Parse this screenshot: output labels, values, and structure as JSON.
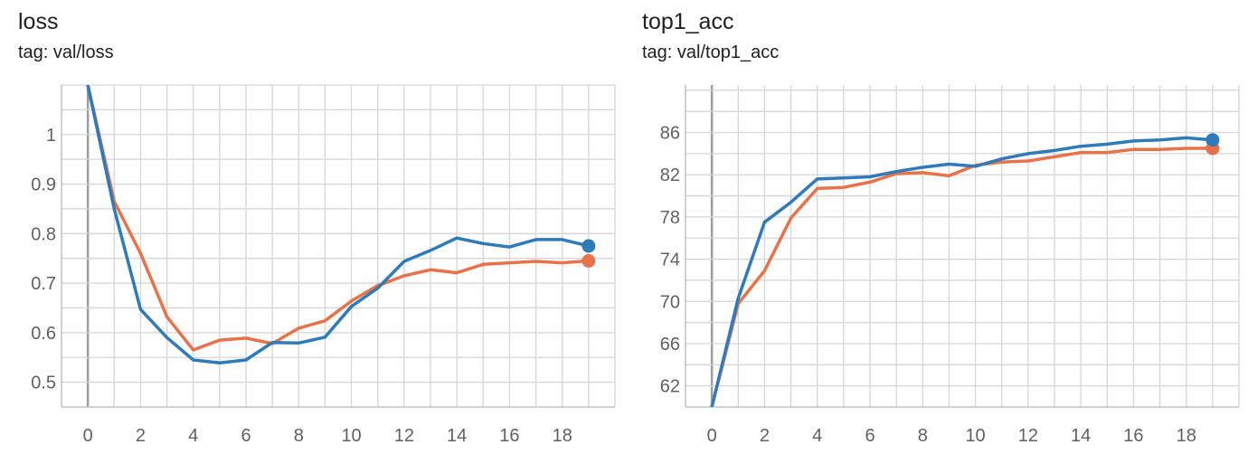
{
  "chart_data": [
    {
      "type": "line",
      "title": "loss",
      "subtitle": "tag: val/loss",
      "xlim": [
        -1,
        20
      ],
      "ylim": [
        0.45,
        1.1
      ],
      "xticks": [
        0,
        2,
        4,
        6,
        8,
        10,
        12,
        14,
        16,
        18
      ],
      "yticks": [
        0.5,
        0.6,
        0.7,
        0.8,
        0.9,
        1
      ],
      "ytick_labels": [
        "0.5",
        "0.6",
        "0.7",
        "0.8",
        "0.9",
        "1"
      ],
      "grid": true,
      "series": [
        {
          "color": "#e8734a",
          "x": [
            0,
            1,
            2,
            3,
            4,
            5,
            6,
            7,
            8,
            9,
            10,
            11,
            12,
            13,
            14,
            15,
            16,
            17,
            18,
            19
          ],
          "y": [
            1.1,
            0.865,
            0.76,
            0.632,
            0.565,
            0.585,
            0.589,
            0.578,
            0.609,
            0.624,
            0.664,
            0.695,
            0.715,
            0.727,
            0.721,
            0.738,
            0.741,
            0.744,
            0.741,
            0.745
          ]
        },
        {
          "color": "#2f7ab8",
          "x": [
            0,
            1,
            2,
            3,
            4,
            5,
            6,
            7,
            8,
            9,
            10,
            11,
            12,
            13,
            14,
            15,
            16,
            17,
            18,
            19
          ],
          "y": [
            1.1,
            0.85,
            0.647,
            0.59,
            0.545,
            0.539,
            0.545,
            0.58,
            0.579,
            0.591,
            0.653,
            0.69,
            0.744,
            0.766,
            0.791,
            0.78,
            0.773,
            0.788,
            0.788,
            0.775
          ]
        }
      ]
    },
    {
      "type": "line",
      "title": "top1_acc",
      "subtitle": "tag: val/top1_acc",
      "xlim": [
        -1,
        20
      ],
      "ylim": [
        60,
        90.5
      ],
      "xticks": [
        0,
        2,
        4,
        6,
        8,
        10,
        12,
        14,
        16,
        18
      ],
      "yticks": [
        62,
        66,
        70,
        74,
        78,
        82,
        86
      ],
      "ytick_labels": [
        "62",
        "66",
        "70",
        "74",
        "78",
        "82",
        "86"
      ],
      "grid": true,
      "series": [
        {
          "color": "#e8734a",
          "x": [
            0,
            1,
            2,
            3,
            4,
            5,
            6,
            7,
            8,
            9,
            10,
            11,
            12,
            13,
            14,
            15,
            16,
            17,
            18,
            19
          ],
          "y": [
            60,
            69.8,
            72.9,
            77.9,
            80.7,
            80.8,
            81.3,
            82.1,
            82.2,
            81.9,
            82.9,
            83.2,
            83.3,
            83.7,
            84.1,
            84.1,
            84.4,
            84.4,
            84.5,
            84.5
          ]
        },
        {
          "color": "#2f7ab8",
          "x": [
            0,
            1,
            2,
            3,
            4,
            5,
            6,
            7,
            8,
            9,
            10,
            11,
            12,
            13,
            14,
            15,
            16,
            17,
            18,
            19
          ],
          "y": [
            60,
            70.3,
            77.5,
            79.4,
            81.6,
            81.7,
            81.8,
            82.3,
            82.7,
            83.0,
            82.8,
            83.5,
            84.0,
            84.3,
            84.7,
            84.9,
            85.2,
            85.3,
            85.5,
            85.3
          ]
        }
      ]
    }
  ]
}
